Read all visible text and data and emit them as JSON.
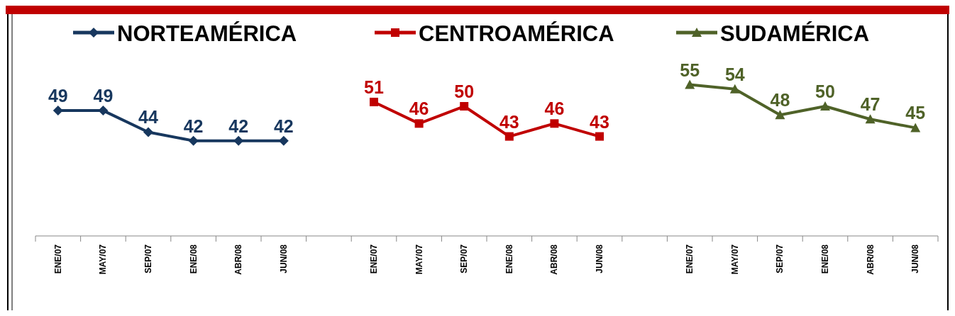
{
  "chart_data": {
    "type": "line",
    "categories": [
      "ENE/07",
      "MAY/07",
      "SEP/07",
      "ENE/08",
      "ABR/08",
      "JUN/08",
      null,
      "ENE/07",
      "MAY/07",
      "SEP/07",
      "ENE/08",
      "ABR/08",
      "JUN/08",
      null,
      "ENE/07",
      "MAY/07",
      "SEP/07",
      "ENE/08",
      "ABR/08",
      "JUN/08"
    ],
    "series": [
      {
        "name": "NORTEAMÉRICA",
        "color": "#17375e",
        "marker": "diamond",
        "values": [
          49,
          49,
          44,
          42,
          42,
          42,
          null,
          null,
          null,
          null,
          null,
          null,
          null,
          null,
          null,
          null,
          null,
          null,
          null,
          null
        ]
      },
      {
        "name": "CENTROAMÉRICA",
        "color": "#c00000",
        "marker": "square",
        "values": [
          null,
          null,
          null,
          null,
          null,
          null,
          null,
          51,
          46,
          50,
          43,
          46,
          43,
          null,
          null,
          null,
          null,
          null,
          null,
          null
        ]
      },
      {
        "name": "SUDAMÉRICA",
        "color": "#4f6228",
        "marker": "triangle",
        "values": [
          null,
          null,
          null,
          null,
          null,
          null,
          null,
          null,
          null,
          null,
          null,
          null,
          null,
          null,
          55,
          54,
          48,
          50,
          47,
          45
        ]
      }
    ],
    "tick_labels": "x",
    "data_labels": true,
    "legend": "top"
  }
}
